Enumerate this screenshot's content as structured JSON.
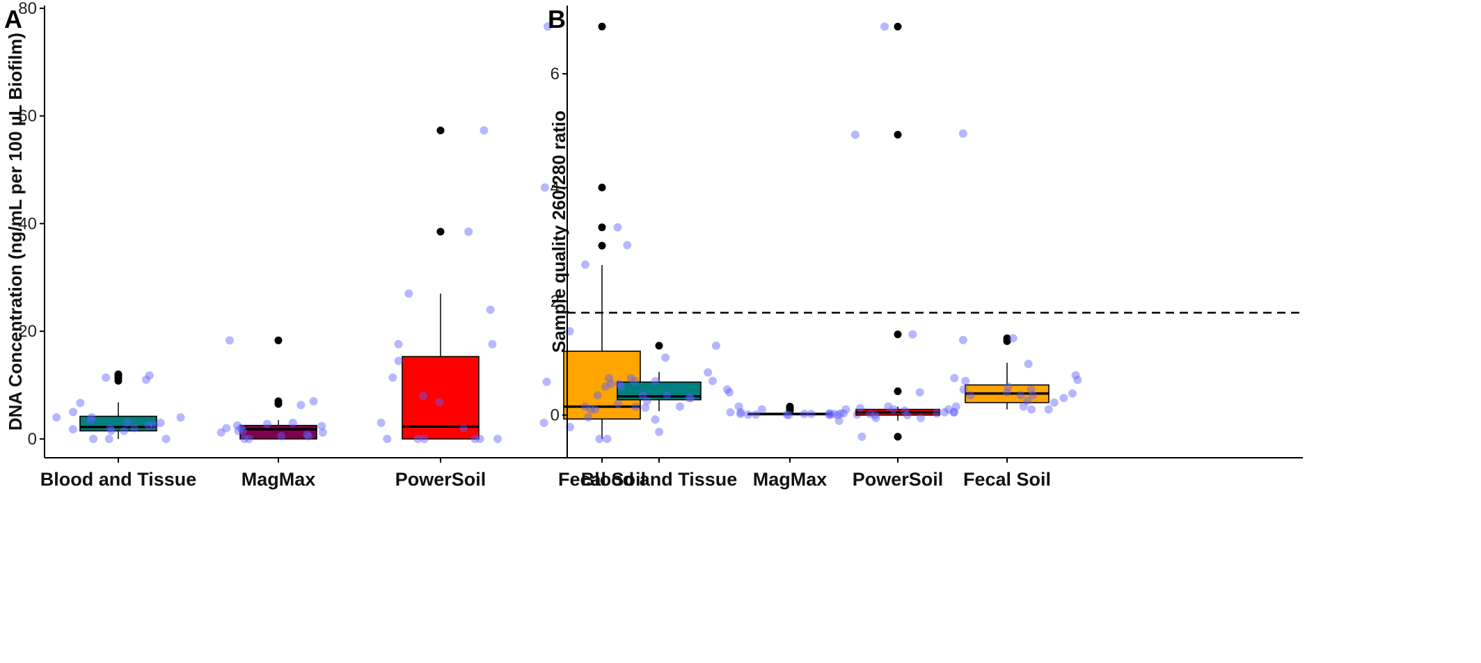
{
  "chart_data": [
    {
      "type": "box",
      "panel_label": "A",
      "title": "",
      "xlabel": "",
      "ylabel": "DNA Concentration (ng/mL per 100 µL Biofilm)",
      "ylim": [
        -3.5,
        80.5
      ],
      "yticks": [
        0,
        20,
        40,
        60,
        80
      ],
      "grid": false,
      "legend": "none",
      "categories": [
        "Blood and Tissue",
        "MagMax",
        "PowerSoil",
        "Fecal Soil"
      ],
      "fill_colors": [
        "#008080",
        "#800050",
        "#ff0000",
        "#ffa500"
      ],
      "boxes": [
        {
          "q1": 1.5,
          "median": 2.2,
          "q3": 4.2,
          "whisker_low": 0,
          "whisker_high": 6.8,
          "outliers": [
            10.8,
            11.3,
            11.7,
            12.0
          ]
        },
        {
          "q1": 0.0,
          "median": 1.8,
          "q3": 2.5,
          "whisker_low": 0,
          "whisker_high": 3.5,
          "outliers": [
            6.5,
            7.0,
            18.3
          ]
        },
        {
          "q1": 0.0,
          "median": 2.3,
          "q3": 15.3,
          "whisker_low": 0,
          "whisker_high": 27.0,
          "outliers": [
            38.5,
            57.3
          ]
        },
        {
          "q1": 3.7,
          "median": 6.0,
          "q3": 16.3,
          "whisker_low": 0,
          "whisker_high": 32.3,
          "outliers": [
            35.9,
            39.3,
            46.7,
            76.6
          ]
        }
      ],
      "jitter_points": [
        [
          1.5,
          2.0,
          6.7,
          11.4,
          5.0,
          4.0,
          2.5,
          3.0,
          0.0,
          4.0,
          3.5,
          1.8,
          0.0,
          2.5,
          4.0,
          1.5,
          0.0,
          11.0,
          11.8,
          2.0,
          3.0
        ],
        [
          18.3,
          2.4,
          0.5,
          1.2,
          0.0,
          2.0,
          7.0,
          1.5,
          0.5,
          6.3,
          2.0,
          2.8,
          2.5,
          3.0,
          1.5,
          0.8,
          1.2,
          0.0
        ],
        [
          0.0,
          3.0,
          27.0,
          38.5,
          0.0,
          17.6,
          0.0,
          24.0,
          14.5,
          8.0,
          11.4,
          2.0,
          0.0,
          6.8,
          0.0,
          17.6,
          0.0,
          57.3
        ],
        [
          0.0,
          2.2,
          9.3,
          6.0,
          5.5,
          20.0,
          6.0,
          0.0,
          5.8,
          46.7,
          3.0,
          1.3,
          36.0,
          32.4,
          15.1,
          10.6,
          3.6,
          4.0,
          39.3,
          76.6
        ]
      ]
    },
    {
      "type": "box",
      "panel_label": "B",
      "title": "",
      "xlabel": "",
      "ylabel": "Sample quality 260/280 ratio",
      "ylim": [
        -0.75,
        7.2
      ],
      "yticks": [
        0,
        2,
        4,
        6
      ],
      "reference_line": 1.8,
      "grid": false,
      "legend": "none",
      "categories": [
        "Blood and Tissue",
        "MagMax",
        "PowerSoil",
        "Fecal Soil"
      ],
      "fill_colors": [
        "#008080",
        "#800050",
        "#ff0000",
        "#ffa500"
      ],
      "boxes": [
        {
          "q1": 0.27,
          "median": 0.33,
          "q3": 0.58,
          "whisker_low": 0.07,
          "whisker_high": 0.76,
          "outliers": [
            1.22
          ]
        },
        {
          "q1": 0.01,
          "median": 0.02,
          "q3": 0.03,
          "whisker_low": 0.0,
          "whisker_high": 0.05,
          "outliers": [
            0.08,
            0.12,
            0.15
          ]
        },
        {
          "q1": 0.0,
          "median": 0.05,
          "q3": 0.1,
          "whisker_low": -0.1,
          "whisker_high": 0.15,
          "outliers": [
            -0.38,
            0.42,
            1.42,
            4.93,
            6.83
          ]
        },
        {
          "q1": 0.22,
          "median": 0.38,
          "q3": 0.53,
          "whisker_low": 0.1,
          "whisker_high": 0.92,
          "outliers": [
            1.3,
            1.35
          ]
        }
      ],
      "jitter_points": [
        [
          0.6,
          0.1,
          0.35,
          0.5,
          0.3,
          0.25,
          0.2,
          0.15,
          0.4,
          0.55,
          0.5,
          0.3,
          0.35,
          1.22,
          0.45,
          0.65,
          0.35,
          0.55,
          0.6,
          0.65,
          0.75,
          0.6
        ],
        [
          0.02,
          0.01,
          0.05,
          0.03,
          0.02,
          0.0,
          0.01,
          0.1,
          0.02,
          0.03,
          0.05,
          0.01,
          0.15,
          0.02,
          0.03,
          0.01,
          0.02,
          0.0
        ],
        [
          0.05,
          0.1,
          1.42,
          0.15,
          0.05,
          0.0,
          4.93,
          4.95,
          0.02,
          0.08,
          0.0,
          0.12,
          0.05,
          -0.05,
          0.03,
          0.4,
          0.1,
          0.0,
          -0.38,
          0.15,
          -0.05,
          -0.1,
          6.83
        ],
        [
          0.5,
          0.35,
          0.65,
          0.1,
          0.7,
          0.25,
          0.45,
          0.15,
          0.38,
          0.35,
          0.62,
          0.4,
          0.9,
          1.35,
          0.1,
          0.22,
          0.45,
          0.3,
          0.6,
          0.1,
          0.35,
          1.32
        ]
      ]
    }
  ]
}
